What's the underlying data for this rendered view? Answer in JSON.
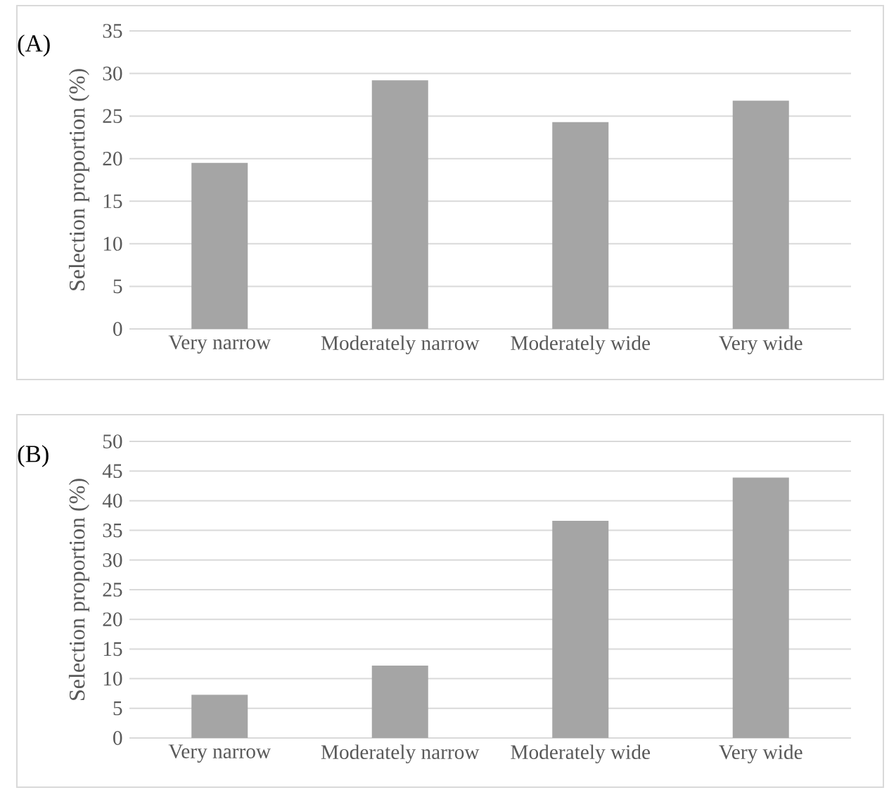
{
  "chart_data": [
    {
      "type": "bar",
      "title": "(A)",
      "ylabel": "Selection proportion (%)",
      "categories": [
        "Very narrow",
        "Moderately narrow",
        "Moderately wide",
        "Very wide"
      ],
      "values": [
        19.5,
        29.2,
        24.3,
        26.8
      ],
      "color": "#a5a5a5",
      "ylim": [
        0,
        35
      ],
      "yticks": [
        0,
        5,
        10,
        15,
        20,
        25,
        30,
        35
      ],
      "grid": "y"
    },
    {
      "type": "bar",
      "title": "(B)",
      "ylabel": "Selection proportion (%)",
      "categories": [
        "Very narrow",
        "Moderately narrow",
        "Moderately wide",
        "Very wide"
      ],
      "values": [
        7.3,
        12.2,
        36.6,
        43.9
      ],
      "color": "#a5a5a5",
      "ylim": [
        0,
        50
      ],
      "yticks": [
        0,
        5,
        10,
        15,
        20,
        25,
        30,
        35,
        40,
        45,
        50
      ],
      "grid": "y"
    }
  ]
}
